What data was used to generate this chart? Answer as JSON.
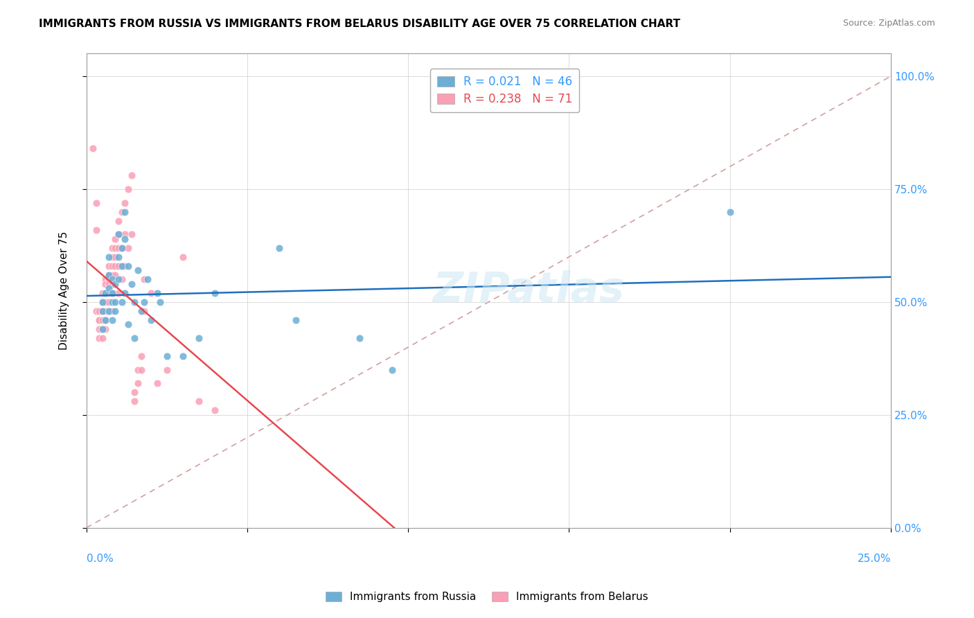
{
  "title": "IMMIGRANTS FROM RUSSIA VS IMMIGRANTS FROM BELARUS DISABILITY AGE OVER 75 CORRELATION CHART",
  "source": "Source: ZipAtlas.com",
  "ylabel": "Disability Age Over 75",
  "yticks": [
    "0.0%",
    "25.0%",
    "50.0%",
    "75.0%",
    "100.0%"
  ],
  "ytick_vals": [
    0.0,
    0.25,
    0.5,
    0.75,
    1.0
  ],
  "xlim": [
    0.0,
    0.25
  ],
  "ylim": [
    0.0,
    1.05
  ],
  "legend_russia": "R = 0.021   N = 46",
  "legend_belarus": "R = 0.238   N = 71",
  "color_russia": "#6baed6",
  "color_belarus": "#fa9fb5",
  "trendline_russia_color": "#1f6fbd",
  "trendline_belarus_color": "#e8474e",
  "diagonal_color": "#d0a0a0",
  "watermark": "ZIPatlas",
  "russia_x": [
    0.005,
    0.005,
    0.005,
    0.006,
    0.006,
    0.007,
    0.007,
    0.007,
    0.007,
    0.008,
    0.008,
    0.008,
    0.008,
    0.009,
    0.009,
    0.009,
    0.01,
    0.01,
    0.01,
    0.011,
    0.011,
    0.011,
    0.012,
    0.012,
    0.012,
    0.013,
    0.013,
    0.014,
    0.015,
    0.015,
    0.016,
    0.017,
    0.018,
    0.019,
    0.02,
    0.022,
    0.023,
    0.025,
    0.03,
    0.035,
    0.04,
    0.06,
    0.065,
    0.085,
    0.095,
    0.2
  ],
  "russia_y": [
    0.48,
    0.5,
    0.44,
    0.52,
    0.46,
    0.6,
    0.53,
    0.48,
    0.56,
    0.55,
    0.5,
    0.52,
    0.46,
    0.54,
    0.48,
    0.5,
    0.65,
    0.6,
    0.55,
    0.58,
    0.62,
    0.5,
    0.7,
    0.64,
    0.52,
    0.58,
    0.45,
    0.54,
    0.5,
    0.42,
    0.57,
    0.48,
    0.5,
    0.55,
    0.46,
    0.52,
    0.5,
    0.38,
    0.38,
    0.42,
    0.52,
    0.62,
    0.46,
    0.42,
    0.35,
    0.7
  ],
  "belarus_x": [
    0.002,
    0.003,
    0.003,
    0.003,
    0.004,
    0.004,
    0.004,
    0.004,
    0.004,
    0.005,
    0.005,
    0.005,
    0.005,
    0.005,
    0.005,
    0.005,
    0.006,
    0.006,
    0.006,
    0.006,
    0.006,
    0.006,
    0.006,
    0.007,
    0.007,
    0.007,
    0.007,
    0.007,
    0.007,
    0.007,
    0.008,
    0.008,
    0.008,
    0.008,
    0.008,
    0.008,
    0.008,
    0.009,
    0.009,
    0.009,
    0.009,
    0.009,
    0.01,
    0.01,
    0.01,
    0.01,
    0.01,
    0.011,
    0.011,
    0.011,
    0.012,
    0.012,
    0.012,
    0.013,
    0.013,
    0.014,
    0.014,
    0.015,
    0.015,
    0.016,
    0.016,
    0.017,
    0.017,
    0.018,
    0.018,
    0.02,
    0.022,
    0.025,
    0.03,
    0.035,
    0.04
  ],
  "belarus_y": [
    0.84,
    0.72,
    0.66,
    0.48,
    0.46,
    0.48,
    0.46,
    0.44,
    0.42,
    0.5,
    0.52,
    0.5,
    0.48,
    0.46,
    0.44,
    0.42,
    0.55,
    0.54,
    0.52,
    0.5,
    0.48,
    0.46,
    0.44,
    0.58,
    0.56,
    0.55,
    0.54,
    0.52,
    0.5,
    0.48,
    0.62,
    0.6,
    0.58,
    0.56,
    0.54,
    0.52,
    0.48,
    0.64,
    0.62,
    0.6,
    0.58,
    0.56,
    0.68,
    0.65,
    0.62,
    0.58,
    0.52,
    0.7,
    0.62,
    0.55,
    0.72,
    0.65,
    0.58,
    0.75,
    0.62,
    0.78,
    0.65,
    0.3,
    0.28,
    0.35,
    0.32,
    0.38,
    0.35,
    0.55,
    0.48,
    0.52,
    0.32,
    0.35,
    0.6,
    0.28,
    0.26
  ]
}
